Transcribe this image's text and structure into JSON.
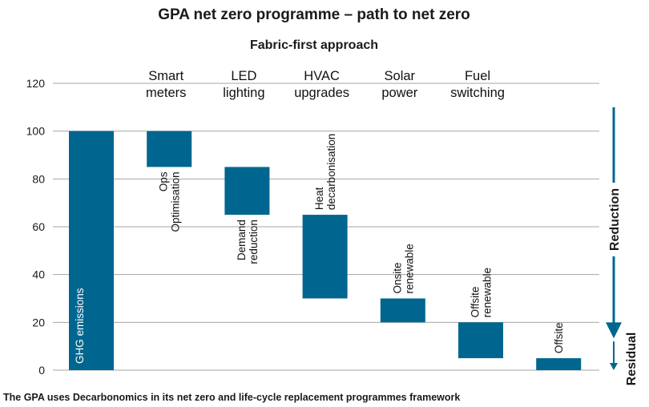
{
  "chart_data": {
    "type": "bar",
    "title": "GPA net zero programme – path to net zero",
    "subtitle": "Fabric-first approach",
    "ylim": [
      0,
      120
    ],
    "yticks": [
      0,
      20,
      40,
      60,
      80,
      100,
      120
    ],
    "grid": true,
    "stages": [
      {
        "lines": [
          "Smart",
          "meters"
        ]
      },
      {
        "lines": [
          "LED",
          "lighting"
        ]
      },
      {
        "lines": [
          "HVAC",
          "upgrades"
        ]
      },
      {
        "lines": [
          "Solar",
          "power"
        ]
      },
      {
        "lines": [
          "Fuel",
          "switching"
        ]
      }
    ],
    "bars": [
      {
        "label": [
          "GHG emissions"
        ],
        "low": 0,
        "high": 100
      },
      {
        "label": [
          "Ops",
          "Optimisation"
        ],
        "low": 85,
        "high": 100
      },
      {
        "label": [
          "Demand",
          "reduction"
        ],
        "low": 65,
        "high": 85
      },
      {
        "label": [
          "Heat",
          "decarbonisation"
        ],
        "low": 30,
        "high": 65
      },
      {
        "label": [
          "Onsite",
          "renewable"
        ],
        "low": 20,
        "high": 30
      },
      {
        "label": [
          "Offsite",
          "renewable"
        ],
        "low": 5,
        "high": 20
      },
      {
        "label": [
          "Offsite"
        ],
        "low": 0,
        "high": 5
      }
    ],
    "bar_color": "#00668f",
    "side_labels": {
      "reduction": "Reduction",
      "residual": "Residual"
    }
  },
  "footnote": "The GPA uses Decarbonomics in its net zero and life-cycle replacement programmes framework"
}
